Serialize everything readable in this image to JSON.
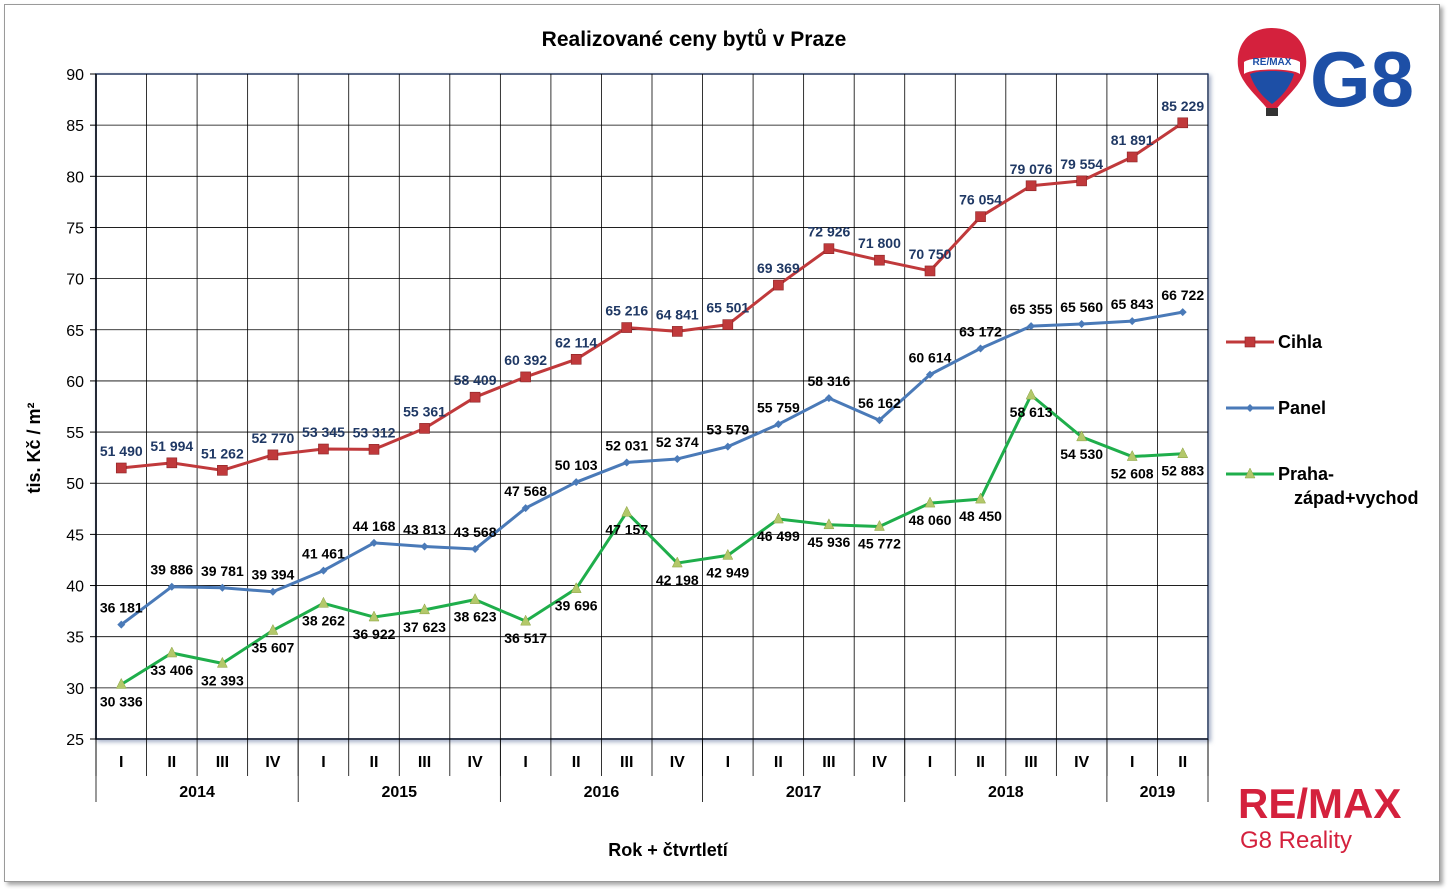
{
  "chart_data": {
    "type": "line",
    "title": "Realizované ceny bytů v Praze",
    "xlabel": "Rok + čtvrtletí",
    "ylabel": "tis. Kč / m²",
    "ylim": [
      25,
      90
    ],
    "yticks": [
      25,
      30,
      35,
      40,
      45,
      50,
      55,
      60,
      65,
      70,
      75,
      80,
      85,
      90
    ],
    "grid": true,
    "legend_position": "right",
    "categories": [
      "I",
      "II",
      "III",
      "IV",
      "I",
      "II",
      "III",
      "IV",
      "I",
      "II",
      "III",
      "IV",
      "I",
      "II",
      "III",
      "IV",
      "I",
      "II",
      "III",
      "IV",
      "I",
      "II"
    ],
    "years": [
      {
        "label": "2014",
        "quarters": 4
      },
      {
        "label": "2015",
        "quarters": 4
      },
      {
        "label": "2016",
        "quarters": 4
      },
      {
        "label": "2017",
        "quarters": 4
      },
      {
        "label": "2018",
        "quarters": 4
      },
      {
        "label": "2019",
        "quarters": 2
      }
    ],
    "series": [
      {
        "name": "Cihla",
        "color": "#c0393b",
        "marker": "square",
        "label_color": "#1f3864",
        "values": [
          51.49,
          51.994,
          51.262,
          52.77,
          53.345,
          53.312,
          55.361,
          58.409,
          60.392,
          62.114,
          65.216,
          64.841,
          65.501,
          69.369,
          72.926,
          71.8,
          70.75,
          76.054,
          79.076,
          79.554,
          81.891,
          85.229
        ],
        "labels": [
          "51 490",
          "51 994",
          "51 262",
          "52 770",
          "53 345",
          "53 312",
          "55 361",
          "58 409",
          "60 392",
          "62 114",
          "65 216",
          "64 841",
          "65 501",
          "69 369",
          "72 926",
          "71 800",
          "70 750",
          "76 054",
          "79 076",
          "79 554",
          "81 891",
          "85 229"
        ]
      },
      {
        "name": "Panel",
        "color": "#4a7ab8",
        "marker": "diamond",
        "label_color": "#000000",
        "values": [
          36.181,
          39.886,
          39.781,
          39.394,
          41.461,
          44.168,
          43.813,
          43.568,
          47.568,
          50.103,
          52.031,
          52.374,
          53.579,
          55.759,
          58.316,
          56.162,
          60.614,
          63.172,
          65.355,
          65.56,
          65.843,
          66.722
        ],
        "labels": [
          "36 181",
          "39 886",
          "39 781",
          "39 394",
          "41 461",
          "44 168",
          "43 813",
          "43 568",
          "47 568",
          "50 103",
          "52 031",
          "52 374",
          "53 579",
          "55 759",
          "58 316",
          "56 162",
          "60 614",
          "63 172",
          "65 355",
          "65 560",
          "65 843",
          "66 722"
        ]
      },
      {
        "name": "Praha-západ+vychod",
        "legend_lines": [
          "Praha-",
          "západ+vychod"
        ],
        "color": "#1fae4b",
        "marker": "triangle",
        "label_color": "#000000",
        "values": [
          30.336,
          33.406,
          32.393,
          35.607,
          38.262,
          36.922,
          37.623,
          38.623,
          36.517,
          39.696,
          47.157,
          42.198,
          42.949,
          46.499,
          45.936,
          45.772,
          48.06,
          48.45,
          58.613,
          54.53,
          52.608,
          52.883
        ],
        "labels": [
          "30 336",
          "33 406",
          "32 393",
          "35 607",
          "38 262",
          "36 922",
          "37 623",
          "38 623",
          "36 517",
          "39 696",
          "47 157",
          "42 198",
          "42 949",
          "46 499",
          "45 936",
          "45 772",
          "48 060",
          "48 450",
          "58 613",
          "54 530",
          "52 608",
          "52 883"
        ]
      }
    ]
  },
  "branding": {
    "balloon_text": "RE/MAX",
    "logo_text": "G8",
    "footer_brand": "RE/MAX",
    "footer_sub": "G8 Reality",
    "brand_red": "#d4213d",
    "brand_blue": "#1d4fa6"
  }
}
